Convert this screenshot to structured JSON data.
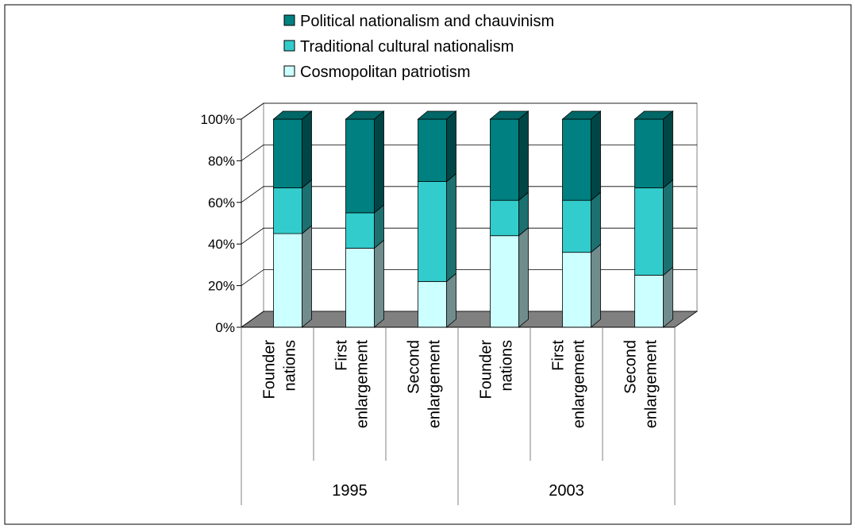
{
  "chart_data": {
    "type": "bar",
    "stacked": "percent",
    "three_d": true,
    "title": "",
    "xlabel": "",
    "ylabel": "",
    "ylim": [
      0,
      100
    ],
    "y_ticks": [
      "0%",
      "20%",
      "40%",
      "60%",
      "80%",
      "100%"
    ],
    "grid": true,
    "legend_position": "top",
    "legend_order": [
      2,
      1,
      0
    ],
    "categories": [
      {
        "line1": "Founder",
        "line2": "nations",
        "group": "1995"
      },
      {
        "line1": "First",
        "line2": "enlargement",
        "group": "1995"
      },
      {
        "line1": "Second",
        "line2": "enlargement",
        "group": "1995"
      },
      {
        "line1": "Founder",
        "line2": "nations",
        "group": "2003"
      },
      {
        "line1": "First",
        "line2": "enlargement",
        "group": "2003"
      },
      {
        "line1": "Second",
        "line2": "enlargement",
        "group": "2003"
      }
    ],
    "groups": [
      "1995",
      "2003"
    ],
    "series": [
      {
        "name": "Cosmopolitan patriotism",
        "color": "#CCFFFF",
        "values": [
          45,
          38,
          22,
          44,
          36,
          25
        ]
      },
      {
        "name": "Traditional cultural nationalism",
        "color": "#33CCCC",
        "values": [
          22,
          17,
          48,
          17,
          25,
          42
        ]
      },
      {
        "name": "Political nationalism and chauvinism",
        "color": "#008080",
        "values": [
          33,
          45,
          30,
          39,
          39,
          33
        ]
      }
    ]
  }
}
